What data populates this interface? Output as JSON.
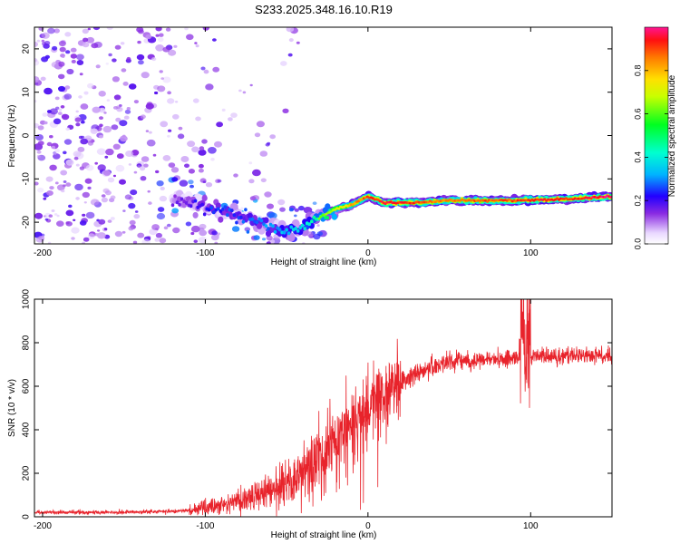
{
  "title": "S233.2025.348.16.10.R19",
  "colors": {
    "snr_line": "#e8232b",
    "spectrogram_track_hot": "#ff1a1a",
    "spectrogram_scatter": "#7a2bd6"
  },
  "chart_data": [
    {
      "type": "heatmap",
      "xlabel": "Height of straight line (km)",
      "ylabel": "Frequency (Hz)",
      "xlim": [
        -205,
        150
      ],
      "ylim": [
        -25,
        25
      ],
      "xticks": [
        -200,
        -100,
        0,
        100
      ],
      "xtick_labels": [
        "-200",
        "-100",
        "0",
        "100"
      ],
      "yticks": [
        -20,
        -10,
        0,
        10,
        20
      ],
      "ytick_labels": [
        "-20",
        "-10",
        "0",
        "10",
        "20"
      ],
      "colorbar": {
        "label": "Normalized spectral amplitude",
        "range": [
          0,
          1
        ],
        "ticks": [
          0.0,
          0.2,
          0.4,
          0.6,
          0.8
        ],
        "tick_labels": [
          "0.0",
          "0.2",
          "0.4",
          "0.6",
          "0.8"
        ]
      },
      "carrier_track": [
        {
          "x": -120,
          "freq": -14.5,
          "amp": 0.2
        },
        {
          "x": -100,
          "freq": -16.5,
          "amp": 0.3
        },
        {
          "x": -80,
          "freq": -18.5,
          "amp": 0.35
        },
        {
          "x": -60,
          "freq": -21.0,
          "amp": 0.4
        },
        {
          "x": -50,
          "freq": -22.0,
          "amp": 0.45
        },
        {
          "x": -40,
          "freq": -21.0,
          "amp": 0.5
        },
        {
          "x": -30,
          "freq": -19.0,
          "amp": 0.6
        },
        {
          "x": -20,
          "freq": -17.0,
          "amp": 0.7
        },
        {
          "x": -10,
          "freq": -16.0,
          "amp": 0.8
        },
        {
          "x": 0,
          "freq": -14.0,
          "amp": 0.9
        },
        {
          "x": 10,
          "freq": -15.5,
          "amp": 0.95
        },
        {
          "x": 30,
          "freq": -15.5,
          "amp": 0.9
        },
        {
          "x": 50,
          "freq": -15.0,
          "amp": 0.85
        },
        {
          "x": 70,
          "freq": -15.0,
          "amp": 0.88
        },
        {
          "x": 90,
          "freq": -15.0,
          "amp": 0.9
        },
        {
          "x": 110,
          "freq": -14.8,
          "amp": 0.95
        },
        {
          "x": 130,
          "freq": -14.5,
          "amp": 0.92
        },
        {
          "x": 150,
          "freq": -14.0,
          "amp": 1.0
        }
      ]
    },
    {
      "type": "line",
      "xlabel": "Height of straight line (km)",
      "ylabel": "SNR (10 * v/v)",
      "xlim": [
        -205,
        150
      ],
      "ylim": [
        0,
        1000
      ],
      "xticks": [
        -200,
        -100,
        0,
        100
      ],
      "xtick_labels": [
        "-200",
        "-100",
        "0",
        "100"
      ],
      "yticks": [
        0,
        200,
        400,
        600,
        800,
        1000
      ],
      "ytick_labels": [
        "0",
        "200",
        "400",
        "600",
        "800",
        "1000"
      ],
      "series": [
        {
          "name": "SNR",
          "x": [
            -205,
            -180,
            -160,
            -140,
            -120,
            -110,
            -100,
            -90,
            -80,
            -70,
            -60,
            -50,
            -40,
            -30,
            -20,
            -10,
            0,
            10,
            20,
            30,
            40,
            50,
            60,
            80,
            95,
            110,
            130,
            150
          ],
          "y": [
            20,
            20,
            20,
            22,
            25,
            30,
            40,
            55,
            70,
            90,
            120,
            150,
            200,
            280,
            360,
            430,
            490,
            570,
            620,
            660,
            690,
            710,
            715,
            725,
            740,
            735,
            740,
            735
          ]
        }
      ]
    }
  ]
}
